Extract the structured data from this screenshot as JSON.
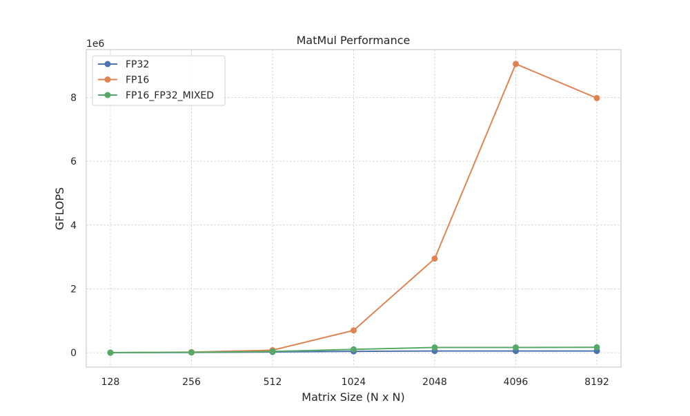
{
  "chart_data": {
    "type": "line",
    "title": "MatMul Performance",
    "xlabel": "Matrix Size (N x N)",
    "ylabel": "GFLOPS",
    "y_offset_label": "1e6",
    "y_scale": 1000000,
    "categories": [
      "128",
      "256",
      "512",
      "1024",
      "2048",
      "4096",
      "8192"
    ],
    "ylim": [
      -450000,
      9500000
    ],
    "y_ticks": [
      0,
      2000000,
      4000000,
      6000000,
      8000000
    ],
    "y_tick_labels": [
      "0",
      "2",
      "4",
      "6",
      "8"
    ],
    "grid": true,
    "legend_position": "top-left",
    "series": [
      {
        "name": "FP32",
        "color": "#4c72b0",
        "values": [
          2000,
          9000,
          25000,
          45000,
          55000,
          55000,
          55000
        ]
      },
      {
        "name": "FP16",
        "color": "#dd8452",
        "values": [
          4000,
          20000,
          80000,
          700000,
          2950000,
          9050000,
          7980000
        ]
      },
      {
        "name": "FP16_FP32_MIXED",
        "color": "#55a868",
        "values": [
          3000,
          12000,
          40000,
          105000,
          165000,
          165000,
          170000
        ]
      }
    ]
  }
}
